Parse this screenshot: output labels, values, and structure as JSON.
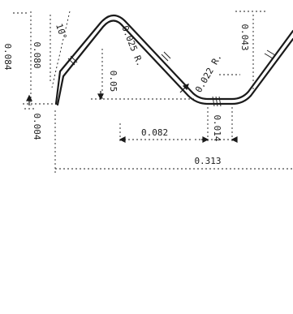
{
  "drawing": {
    "ink_color": "#1a1a1a",
    "background": "#ffffff",
    "dimensions": {
      "overall_height": "0.084",
      "profile_height": "0.080",
      "bottom_thickness": "0.004",
      "crest_to_flat": "0.05",
      "bend_radius": "0.025 R.",
      "bend_angle": "10°",
      "trough_depth": "0.043",
      "inner_radius": "0.022 R.",
      "offset_span": "0.082",
      "trough_width": "0.014",
      "overall_length": "0.313"
    }
  }
}
